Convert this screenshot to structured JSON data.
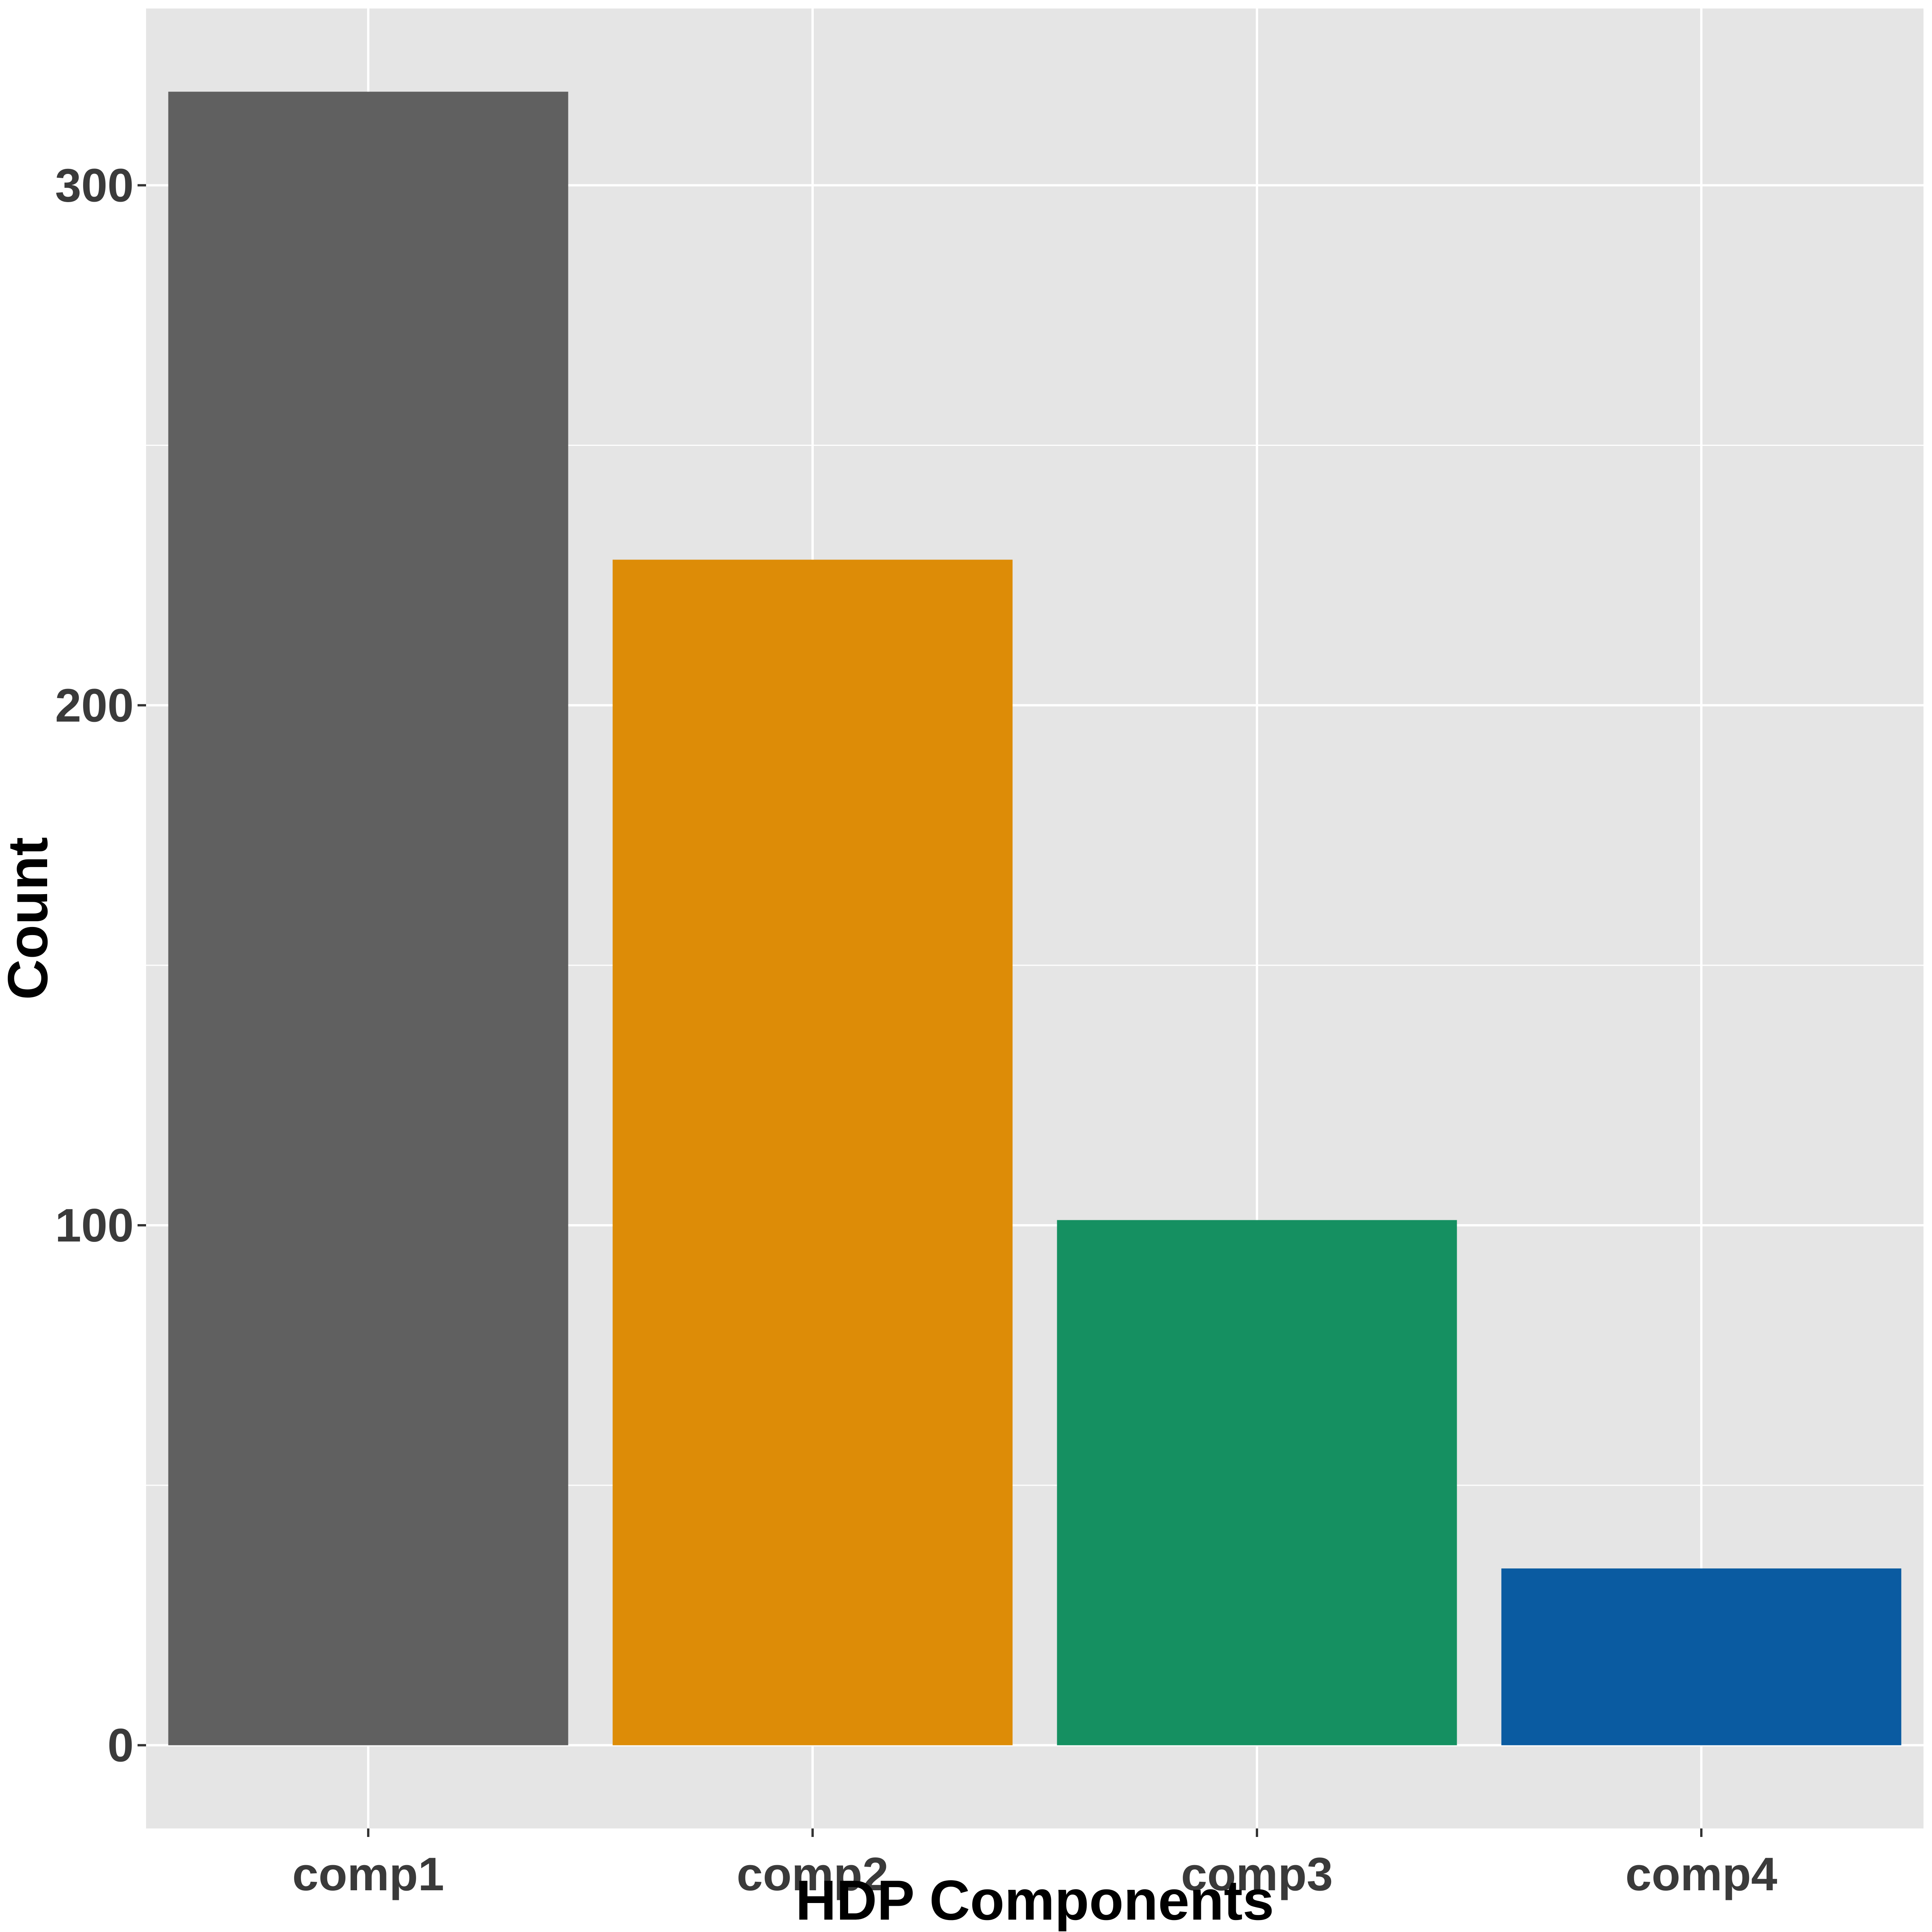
{
  "chart_data": {
    "type": "bar",
    "categories": [
      "comp1",
      "comp2",
      "comp3",
      "comp4"
    ],
    "values": [
      318,
      228,
      101,
      34
    ],
    "colors": [
      "#606060",
      "#dd8c07",
      "#159061",
      "#0a5ba1"
    ],
    "title": "",
    "xlabel": "HDP Components",
    "ylabel": "Count",
    "ylim": [
      -16,
      334
    ],
    "y_ticks": [
      0,
      100,
      200,
      300
    ],
    "y_tick_labels": [
      "0",
      "100",
      "200",
      "300"
    ],
    "grid": true,
    "legend": "none",
    "panel_background": "#e5e5e5",
    "grid_color": "#ffffff"
  }
}
